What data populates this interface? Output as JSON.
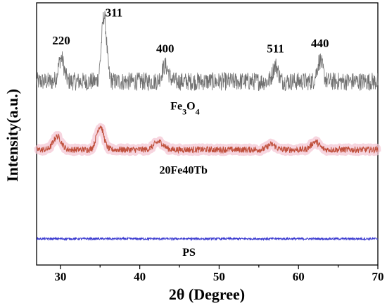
{
  "chart_data": {
    "type": "line",
    "title": "",
    "xlabel": "2θ (Degree)",
    "ylabel": "Intensity(a.u.)",
    "xlim": [
      27,
      70
    ],
    "x_ticks": [
      30,
      40,
      50,
      60,
      70
    ],
    "y_ticks_shown": false,
    "grid": false,
    "legend": "none",
    "series": [
      {
        "name": "Fe3O4",
        "label_parts": [
          "Fe",
          "3",
          "O",
          "4"
        ],
        "color": "#707070",
        "baseline": 0.7,
        "noise": 0.035,
        "peaks": [
          {
            "x": 30.1,
            "height": 0.09,
            "width": 0.35,
            "label": "220"
          },
          {
            "x": 35.5,
            "height": 0.25,
            "width": 0.32,
            "label": "311"
          },
          {
            "x": 43.2,
            "height": 0.06,
            "width": 0.4,
            "label": "400"
          },
          {
            "x": 57.1,
            "height": 0.06,
            "width": 0.35,
            "label": "511"
          },
          {
            "x": 62.7,
            "height": 0.08,
            "width": 0.35,
            "label": "440"
          }
        ]
      },
      {
        "name": "20Fe40Tb",
        "color": "#c0503c",
        "halo_color": "#f4c7d4",
        "baseline": 0.44,
        "noise": 0.012,
        "peaks": [
          {
            "x": 29.6,
            "height": 0.05,
            "width": 0.5
          },
          {
            "x": 35.0,
            "height": 0.09,
            "width": 0.45
          },
          {
            "x": 42.4,
            "height": 0.03,
            "width": 0.6
          },
          {
            "x": 56.6,
            "height": 0.02,
            "width": 0.5
          },
          {
            "x": 62.1,
            "height": 0.03,
            "width": 0.5
          }
        ]
      },
      {
        "name": "PS",
        "color": "#3a3ad0",
        "baseline": 0.1,
        "noise": 0.004,
        "peaks": []
      }
    ]
  }
}
